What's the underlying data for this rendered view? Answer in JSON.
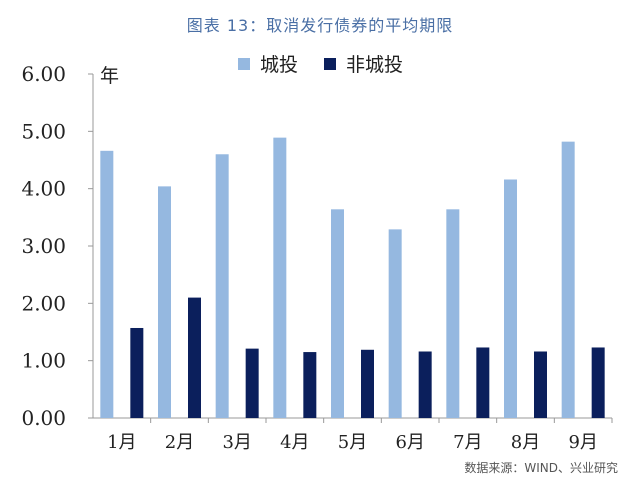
{
  "title": "图表 13：取消发行债券的平均期限",
  "source": "数据来源：WIND、兴业研究",
  "colors": {
    "series1": "#95b8e0",
    "series2": "#0b1f5c",
    "axis": "#999999"
  },
  "chart_data": {
    "type": "bar",
    "ylabel": "年",
    "categories": [
      "1月",
      "2月",
      "3月",
      "4月",
      "5月",
      "6月",
      "7月",
      "8月",
      "9月"
    ],
    "ylim": [
      0,
      6
    ],
    "yticks": [
      "0.00",
      "1.00",
      "2.00",
      "3.00",
      "4.00",
      "5.00",
      "6.00"
    ],
    "grid": false,
    "legend_position": "top",
    "series": [
      {
        "name": "城投",
        "values": [
          4.66,
          4.04,
          4.6,
          4.89,
          3.64,
          3.29,
          3.64,
          4.16,
          4.82
        ]
      },
      {
        "name": "非城投",
        "values": [
          1.57,
          2.1,
          1.21,
          1.15,
          1.19,
          1.16,
          1.23,
          1.16,
          1.23
        ]
      }
    ]
  }
}
